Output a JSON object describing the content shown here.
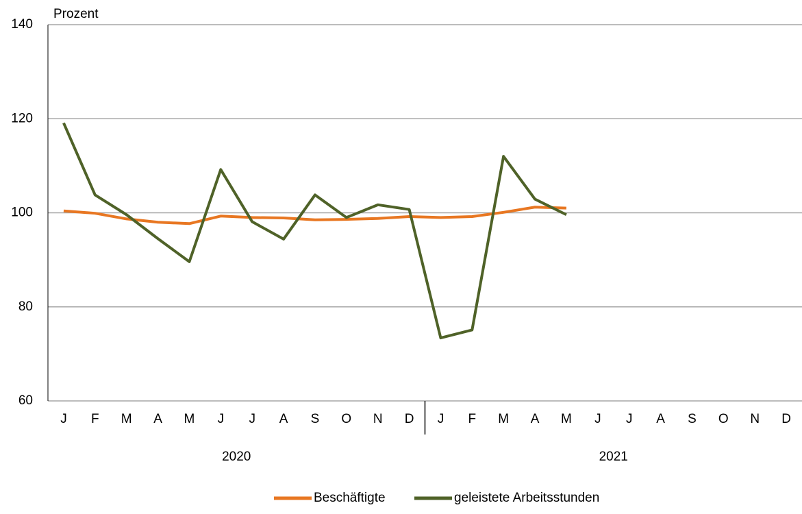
{
  "chart_data": {
    "type": "line",
    "y_label": "Prozent",
    "categories": [
      "J",
      "F",
      "M",
      "A",
      "M",
      "J",
      "J",
      "A",
      "S",
      "O",
      "N",
      "D",
      "J",
      "F",
      "M",
      "A",
      "M",
      "J",
      "J",
      "A",
      "S",
      "O",
      "N",
      "D"
    ],
    "year_labels": [
      "2020",
      "2021"
    ],
    "series": [
      {
        "name": "Beschäftigte",
        "color": "#e87722",
        "values": [
          100.4,
          99.9,
          98.7,
          98.0,
          97.7,
          99.3,
          99.0,
          98.9,
          98.5,
          98.6,
          98.8,
          99.2,
          99.0,
          99.2,
          100.1,
          101.2,
          101.0,
          null,
          null,
          null,
          null,
          null,
          null,
          null
        ]
      },
      {
        "name": "geleistete Arbeitsstunden",
        "color": "#4f6228",
        "values": [
          119.1,
          103.8,
          99.6,
          94.5,
          89.6,
          109.2,
          98.1,
          94.4,
          103.8,
          99.0,
          101.7,
          100.7,
          73.4,
          75.1,
          112.0,
          102.9,
          99.6,
          null,
          null,
          null,
          null,
          null,
          null,
          null
        ]
      }
    ],
    "ylim": [
      60,
      140
    ],
    "yticks": [
      60,
      80,
      100,
      120,
      140
    ],
    "grid": true
  }
}
